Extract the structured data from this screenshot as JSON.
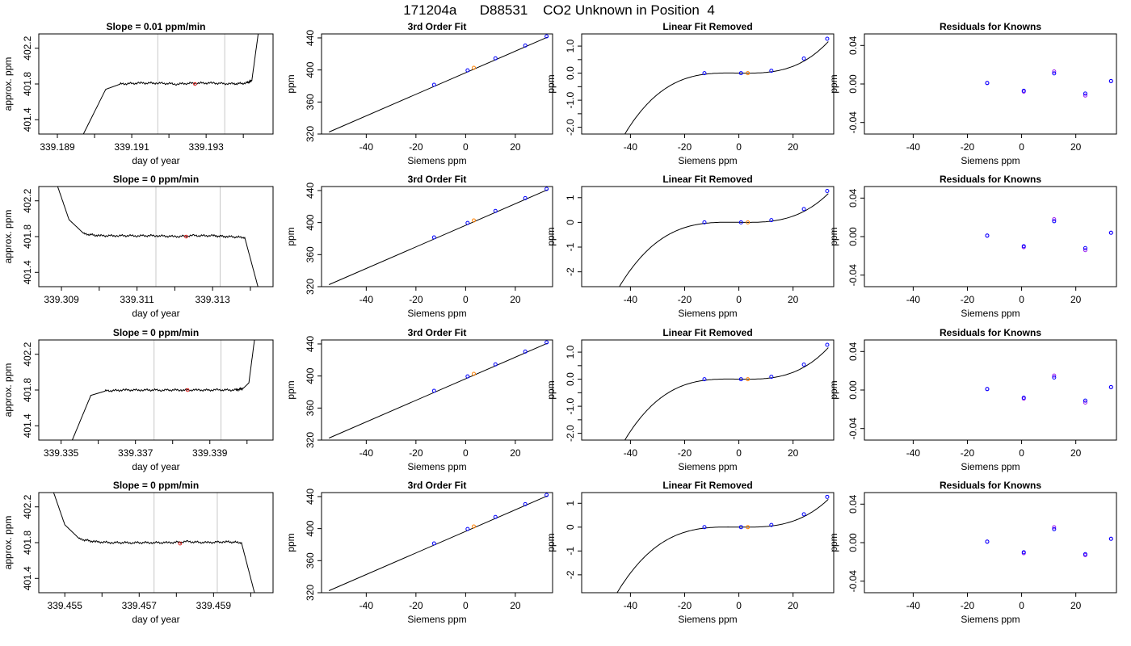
{
  "figure": {
    "suptitle": "171204a      D88531    CO2 Unknown in Position  4"
  },
  "chart_data": [
    {
      "type": "line",
      "panel": "raw",
      "row": 0,
      "title": "Slope =  0.01  ppm/min",
      "xlabel": "day of year",
      "ylabel": "approx. ppm",
      "xlim": [
        339.1885,
        339.1948
      ],
      "ylim": [
        401.24,
        402.36
      ],
      "xticks": [
        339.189,
        339.191,
        339.193
      ],
      "xminor": [
        339.19,
        339.192,
        339.194
      ],
      "yticks": [
        401.4,
        401.8,
        402.2
      ],
      "vlines": [
        339.1917,
        339.1935
      ],
      "series": [
        {
          "x": [
            339.1897,
            339.1903,
            339.1907,
            339.1912,
            339.1917,
            339.1922,
            339.1927,
            339.1932,
            339.1937,
            339.1941,
            339.19423,
            339.1944
          ],
          "y": [
            401.24,
            401.74,
            401.8,
            401.81,
            401.81,
            401.8,
            401.81,
            401.81,
            401.8,
            401.81,
            401.84,
            402.36
          ]
        }
      ],
      "marker": {
        "x": 339.1927,
        "y": 401.8,
        "color": "#e0201e"
      }
    },
    {
      "type": "line",
      "panel": "fit",
      "row": 0,
      "title": "3rd Order Fit",
      "xlabel": "Siemens ppm",
      "ylabel": "ppm",
      "xlim": [
        -58,
        35
      ],
      "ylim": [
        320,
        445
      ],
      "xticks": [
        -40,
        -20,
        0,
        20
      ],
      "yticks": [
        320,
        360,
        400,
        440
      ],
      "line": {
        "x": [
          -55,
          33
        ],
        "y": [
          322.5,
          441
        ]
      },
      "points": [
        {
          "x": -12.7,
          "y": 381.5
        },
        {
          "x": 0.8,
          "y": 399.5
        },
        {
          "x": 12,
          "y": 414.5
        },
        {
          "x": 24,
          "y": 430.5
        },
        {
          "x": 32.6,
          "y": 442
        }
      ],
      "unknown": {
        "x": 3.3,
        "y": 402.7
      }
    },
    {
      "type": "line",
      "panel": "lin",
      "row": 0,
      "title": "Linear Fit Removed",
      "xlabel": "Siemens ppm",
      "ylabel": "ppm",
      "xlim": [
        -58,
        35
      ],
      "ylim": [
        -2.25,
        1.45
      ],
      "xticks": [
        -40,
        -20,
        0,
        20
      ],
      "yticks": [
        -2.0,
        -1.0,
        0.0,
        1.0
      ],
      "yticklabels": [
        "-2.0",
        "-1.0",
        "0.0",
        "1.0"
      ],
      "yminor": [
        -1.5,
        -0.5,
        0.5
      ],
      "curve": {
        "a": 3.2e-05,
        "b": 0.000335,
        "x0": 3.0
      },
      "points": [
        {
          "x": -12.7,
          "y": 0.0
        },
        {
          "x": 0.8,
          "y": 0.0
        },
        {
          "x": 12,
          "y": 0.09
        },
        {
          "x": 24,
          "y": 0.54
        },
        {
          "x": 32.6,
          "y": 1.27
        }
      ],
      "unknown": {
        "x": 3.3,
        "y": 0.0
      }
    },
    {
      "type": "scatter",
      "panel": "res",
      "row": 0,
      "title": "Residuals for Knowns",
      "xlabel": "Siemens ppm",
      "ylabel": "ppm",
      "xlim": [
        -58,
        35
      ],
      "ylim": [
        -0.052,
        0.052
      ],
      "xticks": [
        -40,
        -20,
        0,
        20
      ],
      "yticks": [
        -0.04,
        0.0,
        0.04
      ],
      "yticklabels": [
        "-0.04",
        "0.00",
        "0.04"
      ],
      "points_blue": [
        {
          "x": -12.7,
          "y": 0.001
        },
        {
          "x": 0.8,
          "y": -0.007
        },
        {
          "x": 12,
          "y": 0.011
        },
        {
          "x": 23.5,
          "y": -0.01
        },
        {
          "x": 33,
          "y": 0.003
        }
      ],
      "points_purple": [
        {
          "x": -12.7,
          "y": 0.001
        },
        {
          "x": 0.8,
          "y": -0.008
        },
        {
          "x": 12,
          "y": 0.013
        },
        {
          "x": 23.5,
          "y": -0.012
        },
        {
          "x": 33,
          "y": 0.003
        }
      ]
    },
    {
      "type": "line",
      "panel": "raw",
      "row": 1,
      "title": "Slope =  0  ppm/min",
      "xlabel": "day of year",
      "ylabel": "approx. ppm",
      "xlim": [
        339.3084,
        339.3146
      ],
      "ylim": [
        401.24,
        402.36
      ],
      "xticks": [
        339.309,
        339.311,
        339.313
      ],
      "xminor": [
        339.31,
        339.312,
        339.314
      ],
      "yticks": [
        401.4,
        401.8,
        402.2
      ],
      "vlines": [
        339.3115,
        339.3132
      ],
      "series": [
        {
          "x": [
            339.3089,
            339.3092,
            339.3096,
            339.31,
            339.3105,
            339.311,
            339.3115,
            339.312,
            339.3125,
            339.313,
            339.3134,
            339.31385,
            339.3142
          ],
          "y": [
            402.36,
            401.99,
            401.83,
            401.81,
            401.81,
            401.81,
            401.81,
            401.8,
            401.81,
            401.81,
            401.8,
            401.79,
            401.24
          ]
        }
      ],
      "marker": {
        "x": 339.3123,
        "y": 401.8,
        "color": "#e0201e"
      }
    },
    {
      "type": "line",
      "panel": "fit",
      "row": 1,
      "title": "3rd Order Fit",
      "xlabel": "Siemens ppm",
      "ylabel": "ppm",
      "xlim": [
        -58,
        35
      ],
      "ylim": [
        320,
        445
      ],
      "xticks": [
        -40,
        -20,
        0,
        20
      ],
      "yticks": [
        320,
        360,
        400,
        440
      ],
      "line": {
        "x": [
          -55,
          33
        ],
        "y": [
          322.5,
          441
        ]
      },
      "points": [
        {
          "x": -12.7,
          "y": 381.5
        },
        {
          "x": 0.8,
          "y": 399.5
        },
        {
          "x": 12,
          "y": 414.5
        },
        {
          "x": 24,
          "y": 430.5
        },
        {
          "x": 32.6,
          "y": 442
        }
      ],
      "unknown": {
        "x": 3.3,
        "y": 402.7
      }
    },
    {
      "type": "line",
      "panel": "lin",
      "row": 1,
      "title": "Linear Fit Removed",
      "xlabel": "Siemens ppm",
      "ylabel": "ppm",
      "xlim": [
        -58,
        35
      ],
      "ylim": [
        -2.6,
        1.45
      ],
      "xticks": [
        -40,
        -20,
        0,
        20
      ],
      "yticks": [
        -2,
        -1,
        0,
        1
      ],
      "yticklabels": [
        "-2",
        "-1",
        "0",
        "1"
      ],
      "yminor": [],
      "curve": {
        "a": 3.2e-05,
        "b": 0.000335,
        "x0": 3.0
      },
      "points": [
        {
          "x": -12.7,
          "y": 0.0
        },
        {
          "x": 0.8,
          "y": 0.0
        },
        {
          "x": 12,
          "y": 0.09
        },
        {
          "x": 24,
          "y": 0.54
        },
        {
          "x": 32.6,
          "y": 1.27
        }
      ],
      "unknown": {
        "x": 3.3,
        "y": 0.0
      }
    },
    {
      "type": "scatter",
      "panel": "res",
      "row": 1,
      "title": "Residuals for Knowns",
      "xlabel": "Siemens ppm",
      "ylabel": "ppm",
      "xlim": [
        -58,
        35
      ],
      "ylim": [
        -0.052,
        0.052
      ],
      "xticks": [
        -40,
        -20,
        0,
        20
      ],
      "yticks": [
        -0.04,
        0.0,
        0.04
      ],
      "yticklabels": [
        "-0.04",
        "0.00",
        "0.04"
      ],
      "points_blue": [
        {
          "x": -12.7,
          "y": 0.001
        },
        {
          "x": 0.8,
          "y": -0.01
        },
        {
          "x": 12,
          "y": 0.016
        },
        {
          "x": 23.5,
          "y": -0.012
        },
        {
          "x": 33,
          "y": 0.004
        }
      ],
      "points_purple": [
        {
          "x": -12.7,
          "y": 0.001
        },
        {
          "x": 0.8,
          "y": -0.011
        },
        {
          "x": 12,
          "y": 0.018
        },
        {
          "x": 23.5,
          "y": -0.014
        },
        {
          "x": 33,
          "y": 0.004
        }
      ]
    },
    {
      "type": "line",
      "panel": "raw",
      "row": 2,
      "title": "Slope =  0  ppm/min",
      "xlabel": "day of year",
      "ylabel": "approx. ppm",
      "xlim": [
        339.3344,
        339.3407
      ],
      "ylim": [
        401.24,
        402.36
      ],
      "xticks": [
        339.335,
        339.337,
        339.339
      ],
      "xminor": [
        339.336,
        339.338,
        339.34
      ],
      "yticks": [
        401.4,
        401.8,
        402.2
      ],
      "vlines": [
        339.3375,
        339.3393
      ],
      "series": [
        {
          "x": [
            339.3353,
            339.3358,
            339.3362,
            339.3367,
            339.3372,
            339.3377,
            339.3382,
            339.3387,
            339.3392,
            339.3397,
            339.3399,
            339.34005,
            339.3402
          ],
          "y": [
            401.24,
            401.74,
            401.79,
            401.8,
            401.8,
            401.8,
            401.8,
            401.8,
            401.8,
            401.8,
            401.82,
            401.88,
            402.36
          ]
        }
      ],
      "marker": {
        "x": 339.3384,
        "y": 401.8,
        "color": "#e0201e"
      }
    },
    {
      "type": "line",
      "panel": "fit",
      "row": 2,
      "title": "3rd Order Fit",
      "xlabel": "Siemens ppm",
      "ylabel": "ppm",
      "xlim": [
        -58,
        35
      ],
      "ylim": [
        320,
        445
      ],
      "xticks": [
        -40,
        -20,
        0,
        20
      ],
      "yticks": [
        320,
        360,
        400,
        440
      ],
      "line": {
        "x": [
          -55,
          33
        ],
        "y": [
          322.5,
          441
        ]
      },
      "points": [
        {
          "x": -12.7,
          "y": 381.5
        },
        {
          "x": 0.8,
          "y": 399.5
        },
        {
          "x": 12,
          "y": 414.5
        },
        {
          "x": 24,
          "y": 430.5
        },
        {
          "x": 32.6,
          "y": 442
        }
      ],
      "unknown": {
        "x": 3.3,
        "y": 402.7
      }
    },
    {
      "type": "line",
      "panel": "lin",
      "row": 2,
      "title": "Linear Fit Removed",
      "xlabel": "Siemens ppm",
      "ylabel": "ppm",
      "xlim": [
        -58,
        35
      ],
      "ylim": [
        -2.25,
        1.45
      ],
      "xticks": [
        -40,
        -20,
        0,
        20
      ],
      "yticks": [
        -2.0,
        -1.0,
        0.0,
        1.0
      ],
      "yticklabels": [
        "-2.0",
        "-1.0",
        "0.0",
        "1.0"
      ],
      "yminor": [
        -1.5,
        -0.5,
        0.5
      ],
      "curve": {
        "a": 3.2e-05,
        "b": 0.000335,
        "x0": 3.0
      },
      "points": [
        {
          "x": -12.7,
          "y": 0.0
        },
        {
          "x": 0.8,
          "y": 0.0
        },
        {
          "x": 12,
          "y": 0.09
        },
        {
          "x": 24,
          "y": 0.54
        },
        {
          "x": 32.6,
          "y": 1.27
        }
      ],
      "unknown": {
        "x": 3.3,
        "y": 0.0
      }
    },
    {
      "type": "scatter",
      "panel": "res",
      "row": 2,
      "title": "Residuals for Knowns",
      "xlabel": "Siemens ppm",
      "ylabel": "ppm",
      "xlim": [
        -58,
        35
      ],
      "ylim": [
        -0.052,
        0.052
      ],
      "xticks": [
        -40,
        -20,
        0,
        20
      ],
      "yticks": [
        -0.04,
        0.0,
        0.04
      ],
      "yticklabels": [
        "-0.04",
        "0.00",
        "0.04"
      ],
      "points_blue": [
        {
          "x": -12.7,
          "y": 0.001
        },
        {
          "x": 0.8,
          "y": -0.008
        },
        {
          "x": 12,
          "y": 0.013
        },
        {
          "x": 23.5,
          "y": -0.011
        },
        {
          "x": 33,
          "y": 0.003
        }
      ],
      "points_purple": [
        {
          "x": -12.7,
          "y": 0.001
        },
        {
          "x": 0.8,
          "y": -0.009
        },
        {
          "x": 12,
          "y": 0.015
        },
        {
          "x": 23.5,
          "y": -0.013
        },
        {
          "x": 33,
          "y": 0.003
        }
      ]
    },
    {
      "type": "line",
      "panel": "raw",
      "row": 3,
      "title": "Slope =  0  ppm/min",
      "xlabel": "day of year",
      "ylabel": "approx. ppm",
      "xlim": [
        339.4543,
        339.4606
      ],
      "ylim": [
        401.24,
        402.36
      ],
      "xticks": [
        339.455,
        339.457,
        339.459
      ],
      "xminor": [
        339.456,
        339.458,
        339.46
      ],
      "yticks": [
        401.4,
        401.8,
        402.2
      ],
      "vlines": [
        339.4574,
        339.4591
      ],
      "series": [
        {
          "x": [
            339.4547,
            339.455,
            339.4554,
            339.4558,
            339.4563,
            339.4568,
            339.4573,
            339.4578,
            339.4583,
            339.4588,
            339.4593,
            339.45975,
            339.4601
          ],
          "y": [
            402.36,
            402.0,
            401.84,
            401.81,
            401.8,
            401.8,
            401.8,
            401.8,
            401.81,
            401.8,
            401.81,
            401.8,
            401.24
          ]
        }
      ],
      "marker": {
        "x": 339.4581,
        "y": 401.79,
        "color": "#e0201e"
      }
    },
    {
      "type": "line",
      "panel": "fit",
      "row": 3,
      "title": "3rd Order Fit",
      "xlabel": "Siemens ppm",
      "ylabel": "ppm",
      "xlim": [
        -58,
        35
      ],
      "ylim": [
        320,
        445
      ],
      "xticks": [
        -40,
        -20,
        0,
        20
      ],
      "yticks": [
        320,
        360,
        400,
        440
      ],
      "line": {
        "x": [
          -55,
          33
        ],
        "y": [
          322.5,
          441
        ]
      },
      "points": [
        {
          "x": -12.7,
          "y": 381.5
        },
        {
          "x": 0.8,
          "y": 399.5
        },
        {
          "x": 12,
          "y": 414.5
        },
        {
          "x": 24,
          "y": 430.5
        },
        {
          "x": 32.6,
          "y": 442
        }
      ],
      "unknown": {
        "x": 3.3,
        "y": 402.7
      }
    },
    {
      "type": "line",
      "panel": "lin",
      "row": 3,
      "title": "Linear Fit Removed",
      "xlabel": "Siemens ppm",
      "ylabel": "ppm",
      "xlim": [
        -58,
        35
      ],
      "ylim": [
        -2.75,
        1.45
      ],
      "xticks": [
        -40,
        -20,
        0,
        20
      ],
      "yticks": [
        -2,
        -1,
        0,
        1
      ],
      "yticklabels": [
        "-2",
        "-1",
        "0",
        "1"
      ],
      "yminor": [],
      "curve": {
        "a": 3.2e-05,
        "b": 0.000335,
        "x0": 3.0
      },
      "points": [
        {
          "x": -12.7,
          "y": 0.0
        },
        {
          "x": 0.8,
          "y": 0.0
        },
        {
          "x": 12,
          "y": 0.09
        },
        {
          "x": 24,
          "y": 0.54
        },
        {
          "x": 32.6,
          "y": 1.27
        }
      ],
      "unknown": {
        "x": 3.3,
        "y": 0.0
      }
    },
    {
      "type": "scatter",
      "panel": "res",
      "row": 3,
      "title": "Residuals for Knowns",
      "xlabel": "Siemens ppm",
      "ylabel": "ppm",
      "xlim": [
        -58,
        35
      ],
      "ylim": [
        -0.052,
        0.052
      ],
      "xticks": [
        -40,
        -20,
        0,
        20
      ],
      "yticks": [
        -0.04,
        0.0,
        0.04
      ],
      "yticklabels": [
        "-0.04",
        "0.00",
        "0.04"
      ],
      "points_blue": [
        {
          "x": -12.7,
          "y": 0.001
        },
        {
          "x": 0.8,
          "y": -0.01
        },
        {
          "x": 12,
          "y": 0.014
        },
        {
          "x": 23.5,
          "y": -0.012
        },
        {
          "x": 33,
          "y": 0.004
        }
      ],
      "points_purple": [
        {
          "x": -12.7,
          "y": 0.001
        },
        {
          "x": 0.8,
          "y": -0.011
        },
        {
          "x": 12,
          "y": 0.016
        },
        {
          "x": 23.5,
          "y": -0.013
        },
        {
          "x": 33,
          "y": 0.004
        }
      ]
    }
  ],
  "colors": {
    "line": "#000000",
    "known_points": "#0000ff",
    "known_points_alt": "#a020f0",
    "unknown_point": "#ff8000",
    "raw_marker": "#e0201e",
    "vline": "#c8c8c8"
  }
}
